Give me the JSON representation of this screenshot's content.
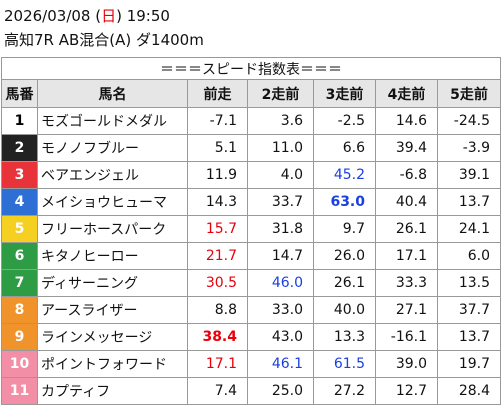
{
  "header": {
    "date_parts": [
      "2026/03/08 (",
      "日",
      ") 19:50"
    ],
    "race": "高知7R AB混合(A) ダ1400m"
  },
  "table": {
    "title": "＝＝＝スピード指数表＝＝＝",
    "columns": [
      "馬番",
      "馬名",
      "前走",
      "2走前",
      "3走前",
      "4走前",
      "5走前"
    ],
    "rows": [
      {
        "number": "1",
        "frame_color": "#ffffff",
        "number_color": "#000000",
        "name": "モズゴールドメダル",
        "values": [
          "-7.1",
          "3.6",
          "-2.5",
          "14.6",
          "-24.5"
        ],
        "styles": [
          "normal",
          "normal",
          "normal",
          "normal",
          "normal"
        ]
      },
      {
        "number": "2",
        "frame_color": "#222222",
        "number_color": "#ffffff",
        "name": "モノノフブルー",
        "values": [
          "5.1",
          "11.0",
          "6.6",
          "39.4",
          "-3.9"
        ],
        "styles": [
          "normal",
          "normal",
          "normal",
          "normal",
          "normal"
        ]
      },
      {
        "number": "3",
        "frame_color": "#e8333a",
        "number_color": "#ffffff",
        "name": "ベアエンジェル",
        "values": [
          "11.9",
          "4.0",
          "45.2",
          "-6.8",
          "39.1"
        ],
        "styles": [
          "normal",
          "normal",
          "blue",
          "normal",
          "normal"
        ]
      },
      {
        "number": "4",
        "frame_color": "#2e6fd6",
        "number_color": "#ffffff",
        "name": "メイショウヒューマ",
        "values": [
          "14.3",
          "33.7",
          "63.0",
          "40.4",
          "13.7"
        ],
        "styles": [
          "normal",
          "normal",
          "blue-bold",
          "normal",
          "normal"
        ]
      },
      {
        "number": "5",
        "frame_color": "#f5d020",
        "number_color": "#ffffff",
        "name": "フリーホースパーク",
        "values": [
          "15.7",
          "31.8",
          "9.7",
          "26.1",
          "24.1"
        ],
        "styles": [
          "red",
          "normal",
          "normal",
          "normal",
          "normal"
        ]
      },
      {
        "number": "6",
        "frame_color": "#2e9b45",
        "number_color": "#ffffff",
        "name": "キタノヒーロー",
        "values": [
          "21.7",
          "14.7",
          "26.0",
          "17.1",
          "6.0"
        ],
        "styles": [
          "red",
          "normal",
          "normal",
          "normal",
          "normal"
        ]
      },
      {
        "number": "7",
        "frame_color": "#2e9b45",
        "number_color": "#ffffff",
        "name": "ディサーニング",
        "values": [
          "30.5",
          "46.0",
          "26.1",
          "33.3",
          "13.5"
        ],
        "styles": [
          "red",
          "blue",
          "normal",
          "normal",
          "normal"
        ]
      },
      {
        "number": "8",
        "frame_color": "#f0932b",
        "number_color": "#ffffff",
        "name": "アースライザー",
        "values": [
          "8.8",
          "33.0",
          "40.0",
          "27.1",
          "37.7"
        ],
        "styles": [
          "normal",
          "normal",
          "normal",
          "normal",
          "normal"
        ]
      },
      {
        "number": "9",
        "frame_color": "#f0932b",
        "number_color": "#ffffff",
        "name": "ラインメッセージ",
        "values": [
          "38.4",
          "43.0",
          "13.3",
          "-16.1",
          "13.7"
        ],
        "styles": [
          "red-bold",
          "normal",
          "normal",
          "normal",
          "normal"
        ]
      },
      {
        "number": "10",
        "frame_color": "#f28fa6",
        "number_color": "#ffffff",
        "name": "ポイントフォワード",
        "values": [
          "17.1",
          "46.1",
          "61.5",
          "39.0",
          "19.7"
        ],
        "styles": [
          "red",
          "blue",
          "blue",
          "normal",
          "normal"
        ]
      },
      {
        "number": "11",
        "frame_color": "#f28fa6",
        "number_color": "#ffffff",
        "name": "カプティフ",
        "values": [
          "7.4",
          "25.0",
          "27.2",
          "12.7",
          "28.4"
        ],
        "styles": [
          "normal",
          "normal",
          "normal",
          "normal",
          "normal"
        ]
      }
    ]
  }
}
